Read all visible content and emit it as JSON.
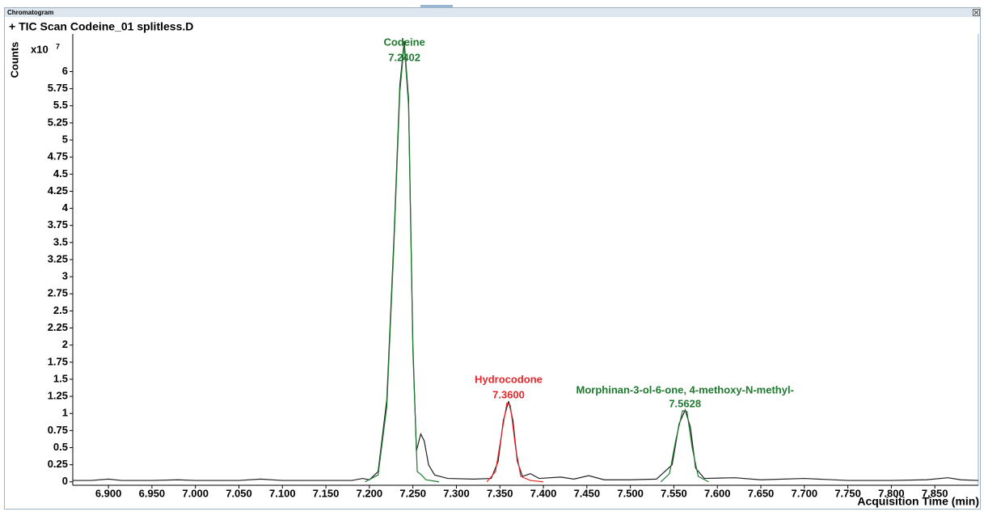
{
  "window_title": "Chromatogram",
  "chart_data": {
    "type": "line",
    "title": "+ TIC Scan Codeine_01 splitless.D",
    "y_label": "Counts",
    "y_multiplier": {
      "base": "x10",
      "exponent": "7"
    },
    "x_label": "Acquisition Time (min)",
    "xlim": [
      6.859,
      7.9
    ],
    "ylim": [
      -0.05,
      6.55
    ],
    "xticks": [
      {
        "value": 6.9,
        "label": "6.900"
      },
      {
        "value": 6.95,
        "label": "6.950"
      },
      {
        "value": 7.0,
        "label": "7.000"
      },
      {
        "value": 7.05,
        "label": "7.050"
      },
      {
        "value": 7.1,
        "label": "7.100"
      },
      {
        "value": 7.15,
        "label": "7.150"
      },
      {
        "value": 7.2,
        "label": "7.200"
      },
      {
        "value": 7.25,
        "label": "7.250"
      },
      {
        "value": 7.3,
        "label": "7.300"
      },
      {
        "value": 7.35,
        "label": "7.350"
      },
      {
        "value": 7.4,
        "label": "7.400"
      },
      {
        "value": 7.45,
        "label": "7.450"
      },
      {
        "value": 7.5,
        "label": "7.500"
      },
      {
        "value": 7.55,
        "label": "7.550"
      },
      {
        "value": 7.6,
        "label": "7.600"
      },
      {
        "value": 7.65,
        "label": "7.650"
      },
      {
        "value": 7.7,
        "label": "7.700"
      },
      {
        "value": 7.75,
        "label": "7.750"
      },
      {
        "value": 7.8,
        "label": "7.800"
      },
      {
        "value": 7.85,
        "label": "7.850"
      }
    ],
    "yticks": [
      0,
      0.25,
      0.5,
      0.75,
      1,
      1.25,
      1.5,
      1.75,
      2,
      2.25,
      2.5,
      2.75,
      3,
      3.25,
      3.5,
      3.75,
      4,
      4.25,
      4.5,
      4.75,
      5,
      5.25,
      5.5,
      5.75,
      6
    ],
    "grid": false,
    "series": [
      {
        "color": "#222222",
        "x": [
          6.859,
          6.88,
          6.9,
          6.915,
          6.95,
          6.98,
          7.0,
          7.05,
          7.075,
          7.1,
          7.15,
          7.18,
          7.192,
          7.2,
          7.21,
          7.22,
          7.228,
          7.235,
          7.24,
          7.245,
          7.25,
          7.254,
          7.259,
          7.263,
          7.268,
          7.275,
          7.29,
          7.32,
          7.34,
          7.348,
          7.354,
          7.36,
          7.365,
          7.37,
          7.376,
          7.385,
          7.395,
          7.42,
          7.435,
          7.452,
          7.47,
          7.5,
          7.53,
          7.548,
          7.556,
          7.563,
          7.569,
          7.575,
          7.585,
          7.62,
          7.65,
          7.7,
          7.75,
          7.8,
          7.84,
          7.865,
          7.88,
          7.9
        ],
        "values": [
          0.02,
          0.02,
          0.04,
          0.02,
          0.02,
          0.03,
          0.02,
          0.02,
          0.04,
          0.02,
          0.02,
          0.02,
          0.05,
          0.03,
          0.15,
          1.2,
          3.5,
          5.8,
          6.45,
          5.6,
          2.0,
          0.45,
          0.7,
          0.6,
          0.25,
          0.1,
          0.05,
          0.04,
          0.05,
          0.3,
          0.9,
          1.18,
          0.9,
          0.3,
          0.08,
          0.12,
          0.05,
          0.07,
          0.04,
          0.09,
          0.03,
          0.03,
          0.04,
          0.25,
          0.85,
          1.05,
          0.8,
          0.2,
          0.05,
          0.06,
          0.03,
          0.05,
          0.02,
          0.02,
          0.03,
          0.06,
          0.03,
          0.02
        ]
      },
      {
        "color": "#1e7a2e",
        "x": [
          7.195,
          7.21,
          7.22,
          7.228,
          7.235,
          7.24,
          7.245,
          7.25,
          7.255,
          7.26,
          7.265,
          7.28
        ],
        "values": [
          0,
          0.1,
          1.1,
          3.4,
          5.7,
          6.4,
          5.5,
          1.9,
          0.15,
          0.1,
          0.03,
          0
        ]
      },
      {
        "color": "#e8262a",
        "x": [
          7.335,
          7.345,
          7.352,
          7.358,
          7.362,
          7.368,
          7.374,
          7.385,
          7.4
        ],
        "values": [
          0,
          0.15,
          0.7,
          1.15,
          1.12,
          0.5,
          0.08,
          0.02,
          0
        ]
      },
      {
        "color": "#1e7a2e",
        "x": [
          7.535,
          7.545,
          7.552,
          7.56,
          7.565,
          7.571,
          7.578,
          7.59
        ],
        "values": [
          0,
          0.12,
          0.6,
          1.04,
          1.03,
          0.5,
          0.08,
          0
        ]
      }
    ],
    "annotations": [
      {
        "name": "Codeine",
        "x": 7.2402,
        "color": "#1e7a2e"
      },
      {
        "name": "Hydrocodone",
        "x": 7.36,
        "label": "7.3600",
        "color": "#e8262a"
      },
      {
        "name": "Morphinan-3-ol-6-one, 4-methoxy-N-methyl-",
        "x": 7.5628,
        "color": "#1e7a2e"
      }
    ]
  }
}
